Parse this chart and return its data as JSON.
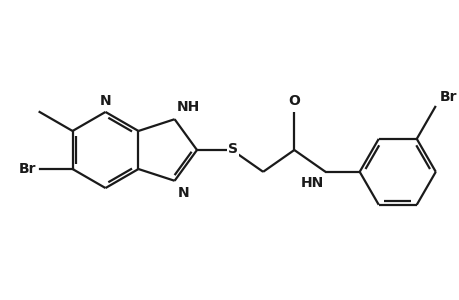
{
  "bg_color": "#ffffff",
  "line_color": "#1a1a1a",
  "bond_width": 1.6,
  "figsize": [
    4.6,
    3.0
  ],
  "dpi": 100,
  "xlim": [
    0.0,
    4.6
  ],
  "ylim": [
    0.3,
    2.7
  ]
}
